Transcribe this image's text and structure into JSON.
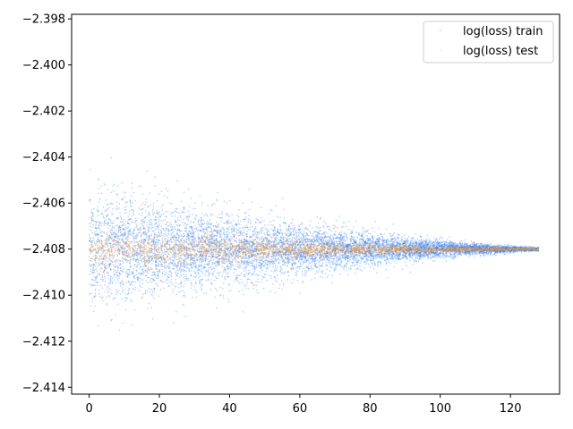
{
  "chart_data": {
    "type": "scatter",
    "title": "",
    "xlabel": "",
    "ylabel": "",
    "xlim": [
      -5,
      134
    ],
    "ylim": [
      -2.4143,
      -2.3978
    ],
    "xticks": [
      0,
      20,
      40,
      60,
      80,
      100,
      120
    ],
    "yticks": [
      -2.414,
      -2.412,
      -2.41,
      -2.408,
      -2.406,
      -2.404,
      -2.402,
      -2.4,
      -2.398
    ],
    "xtick_labels": [
      "0",
      "20",
      "40",
      "60",
      "80",
      "100",
      "120"
    ],
    "ytick_labels": [
      "−2.414",
      "−2.412",
      "−2.410",
      "−2.408",
      "−2.406",
      "−2.404",
      "−2.402",
      "−2.400",
      "−2.398"
    ],
    "grid": false,
    "legend_position": "top-right",
    "center_value": -2.408,
    "x_range": [
      0,
      128
    ],
    "series": [
      {
        "name": "log(loss) train",
        "color": "#1f77ff",
        "spread_start": 0.0012,
        "spread_end": 4e-05
      },
      {
        "name": "log(loss) test",
        "color": "#ff9a1a",
        "spread_start": 0.0004,
        "spread_end": 2e-05
      }
    ]
  }
}
